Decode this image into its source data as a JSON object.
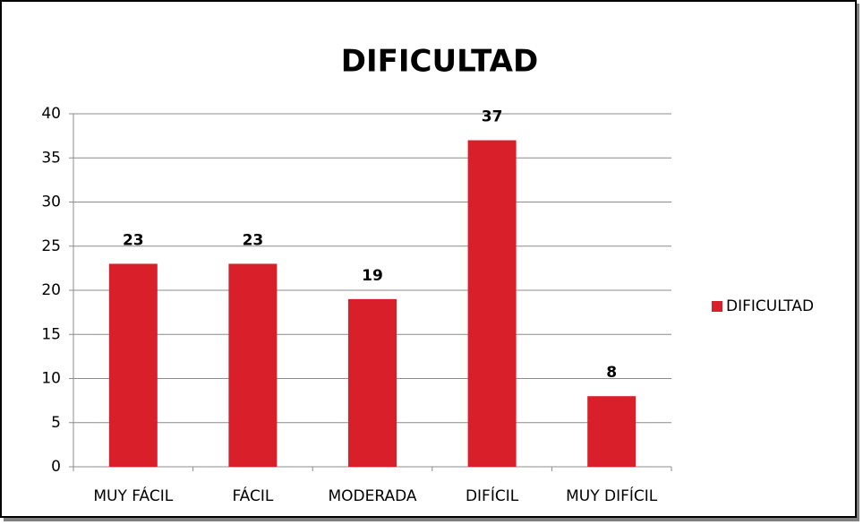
{
  "chart_data": {
    "type": "bar",
    "title": "DIFICULTAD",
    "categories": [
      "MUY FÁCIL",
      "FÁCIL",
      "MODERADA",
      "DIFÍCIL",
      "MUY DIFÍCIL"
    ],
    "series": [
      {
        "name": "DIFICULTAD",
        "color": "#d9202a",
        "values": [
          23,
          23,
          19,
          37,
          8
        ]
      }
    ],
    "ylim": [
      0,
      40
    ],
    "yticks": [
      0,
      5,
      10,
      15,
      20,
      25,
      30,
      35,
      40
    ],
    "grid": true,
    "legend": "right"
  }
}
